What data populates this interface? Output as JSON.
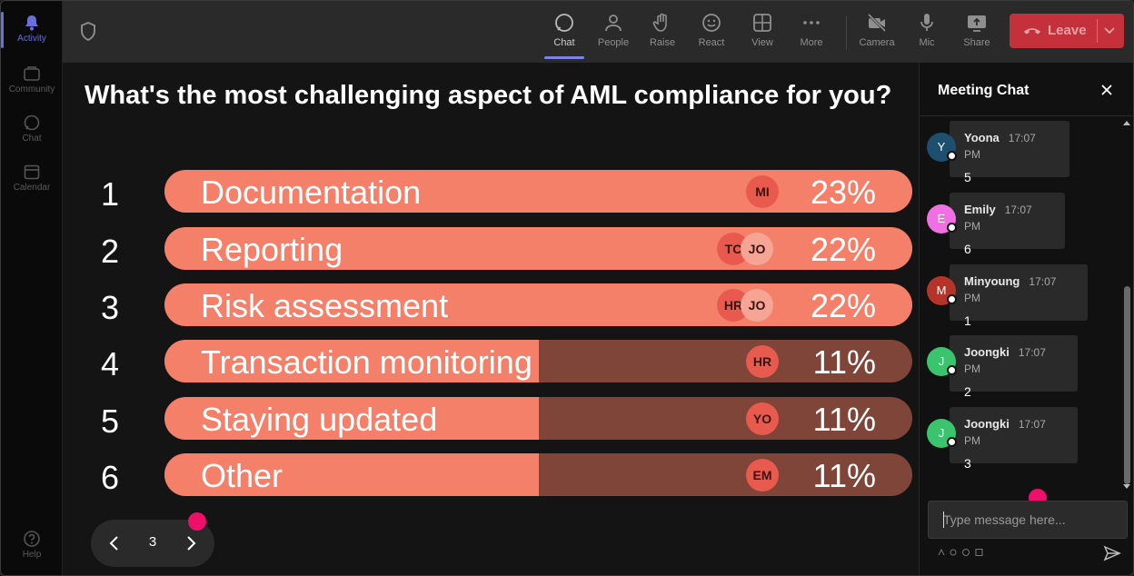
{
  "rail": {
    "items": [
      {
        "label": "Activity",
        "icon": "bell-icon",
        "active": true
      },
      {
        "label": "Community",
        "icon": "community-icon"
      },
      {
        "label": "Chat",
        "icon": "chat-icon"
      },
      {
        "label": "Calendar",
        "icon": "calendar-icon"
      }
    ],
    "help": {
      "label": "Help",
      "icon": "help-icon"
    }
  },
  "toolbar": {
    "chat": "Chat",
    "people": "People",
    "raise": "Raise",
    "react": "React",
    "view": "View",
    "more": "More",
    "camera": "Camera",
    "mic": "Mic",
    "share": "Share",
    "leave": "Leave"
  },
  "poll": {
    "question": "What's the most challenging aspect of AML compliance for you?",
    "options": [
      {
        "rank": "1",
        "label": "Documentation",
        "percent": "23%",
        "fill": 1.0,
        "avatars": [
          "MI"
        ]
      },
      {
        "rank": "2",
        "label": "Reporting",
        "percent": "22%",
        "fill": 1.0,
        "avatars": [
          "TC",
          "JO"
        ]
      },
      {
        "rank": "3",
        "label": "Risk assessment",
        "percent": "22%",
        "fill": 1.0,
        "avatars": [
          "HR",
          "JO"
        ]
      },
      {
        "rank": "4",
        "label": "Transaction monitoring",
        "percent": "11%",
        "fill": 0.5,
        "avatars": [
          "HR"
        ]
      },
      {
        "rank": "5",
        "label": "Staying updated",
        "percent": "11%",
        "fill": 0.5,
        "avatars": [
          "YO"
        ]
      },
      {
        "rank": "6",
        "label": "Other",
        "percent": "11%",
        "fill": 0.5,
        "avatars": [
          "EM"
        ]
      }
    ]
  },
  "pager": {
    "page": "3"
  },
  "chat": {
    "title": "Meeting Chat",
    "messages": [
      {
        "initial": "Y",
        "name": "Yoona",
        "time": "17:07 PM",
        "text": "5",
        "color": "#1e4f6e"
      },
      {
        "initial": "E",
        "name": "Emily",
        "time": "17:07 PM",
        "text": "6",
        "color": "#f06fe3"
      },
      {
        "initial": "M",
        "name": "Minyoung",
        "time": "17:07 PM",
        "text": "1",
        "color": "#b5342a"
      },
      {
        "initial": "J",
        "name": "Joongki",
        "time": "17:07 PM",
        "text": "2",
        "color": "#3bc46e"
      },
      {
        "initial": "J",
        "name": "Joongki",
        "time": "17:07 PM",
        "text": "3",
        "color": "#3bc46e"
      }
    ],
    "input_placeholder": "Type message here..."
  },
  "colors": {
    "accent": "#7d82e8",
    "leave": "#c4313b",
    "bar_fill": "#f4806a",
    "bar_track": "#7f4538",
    "cursor_dot": "#ee0f6b"
  }
}
